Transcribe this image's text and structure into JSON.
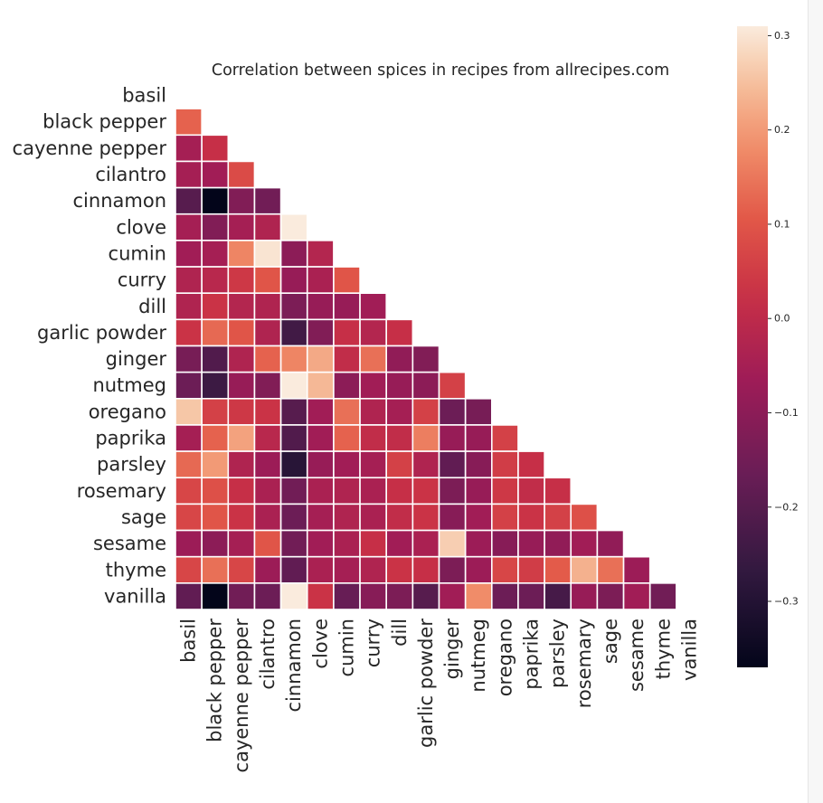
{
  "chart_data": {
    "type": "heatmap",
    "title": "Correlation between spices in recipes from allrecipes.com",
    "labels": [
      "basil",
      "black pepper",
      "cayenne pepper",
      "cilantro",
      "cinnamon",
      "clove",
      "cumin",
      "curry",
      "dill",
      "garlic powder",
      "ginger",
      "nutmeg",
      "oregano",
      "paprika",
      "parsley",
      "rosemary",
      "sage",
      "sesame",
      "thyme",
      "vanilla"
    ],
    "mask": "upper triangle including diagonal",
    "values": [
      [],
      [
        0.12
      ],
      [
        -0.05,
        0.02
      ],
      [
        -0.05,
        -0.06,
        0.08
      ],
      [
        -0.2,
        -0.37,
        -0.12,
        -0.15
      ],
      [
        -0.05,
        -0.12,
        -0.05,
        -0.03,
        0.31
      ],
      [
        -0.06,
        -0.05,
        0.17,
        0.3,
        -0.1,
        -0.02
      ],
      [
        -0.03,
        -0.01,
        0.04,
        0.1,
        -0.08,
        -0.04,
        0.1
      ],
      [
        -0.03,
        0.03,
        -0.02,
        -0.03,
        -0.13,
        -0.08,
        -0.08,
        -0.06
      ],
      [
        0.03,
        0.13,
        0.1,
        -0.03,
        -0.24,
        -0.12,
        0.02,
        -0.02,
        0.02
      ],
      [
        -0.14,
        -0.21,
        -0.03,
        0.12,
        0.17,
        0.22,
        0.01,
        0.14,
        -0.09,
        -0.12
      ],
      [
        -0.16,
        -0.25,
        -0.08,
        -0.12,
        0.31,
        0.24,
        -0.1,
        -0.06,
        -0.08,
        -0.1,
        0.06
      ],
      [
        0.26,
        0.06,
        0.04,
        0.03,
        -0.2,
        -0.06,
        0.14,
        -0.03,
        -0.05,
        0.06,
        -0.16,
        -0.14
      ],
      [
        -0.05,
        0.12,
        0.21,
        -0.01,
        -0.21,
        -0.06,
        0.12,
        0.01,
        0.01,
        0.16,
        -0.08,
        -0.08,
        0.06
      ],
      [
        0.13,
        0.2,
        -0.03,
        -0.07,
        -0.29,
        -0.08,
        -0.06,
        -0.05,
        0.06,
        -0.03,
        -0.18,
        -0.11,
        0.05,
        0.02
      ],
      [
        0.07,
        0.09,
        0.02,
        -0.04,
        -0.15,
        -0.04,
        -0.03,
        -0.04,
        0.02,
        0.03,
        -0.13,
        -0.08,
        0.04,
        0.01,
        0.02
      ],
      [
        0.07,
        0.1,
        0.03,
        -0.04,
        -0.16,
        -0.05,
        -0.03,
        -0.04,
        0.01,
        0.03,
        -0.11,
        -0.06,
        0.06,
        0.03,
        0.06,
        0.09
      ],
      [
        -0.07,
        -0.1,
        -0.05,
        0.1,
        -0.15,
        -0.06,
        -0.04,
        0.02,
        -0.06,
        -0.04,
        0.27,
        -0.07,
        -0.11,
        -0.08,
        -0.09,
        -0.06,
        -0.09
      ],
      [
        0.07,
        0.14,
        0.07,
        -0.07,
        -0.18,
        -0.04,
        -0.05,
        -0.03,
        0.03,
        0.02,
        -0.13,
        -0.07,
        0.07,
        0.05,
        0.11,
        0.23,
        0.14,
        -0.07
      ],
      [
        -0.18,
        -0.37,
        -0.15,
        -0.16,
        0.31,
        0.03,
        -0.17,
        -0.11,
        -0.13,
        -0.2,
        -0.06,
        0.18,
        -0.16,
        -0.16,
        -0.23,
        -0.08,
        -0.13,
        -0.06,
        -0.15
      ]
    ],
    "colormap": "rocket",
    "vmin": -0.37,
    "vmax": 0.31,
    "colorbar_ticks": [
      "0.3",
      "0.2",
      "0.1",
      "0.0",
      "−0.1",
      "−0.2",
      "−0.3"
    ],
    "colorbar_tick_values": [
      0.3,
      0.2,
      0.1,
      0.0,
      -0.1,
      -0.2,
      -0.3
    ],
    "grid": "white cell borders"
  }
}
